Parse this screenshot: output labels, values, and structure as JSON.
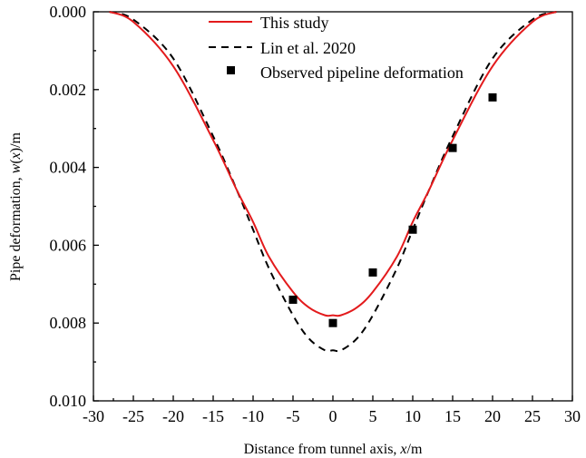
{
  "chart_data": {
    "type": "line",
    "title": "",
    "xlabel_parts": [
      "Distance from tunnel axis, ",
      "x",
      "/m"
    ],
    "ylabel_parts": [
      "Pipe deformation, ",
      "w",
      "(",
      "x",
      ")/m"
    ],
    "xlim": [
      -30,
      30
    ],
    "ylim": [
      0.0,
      0.01
    ],
    "y_inverted": true,
    "x_ticks": [
      -30,
      -25,
      -20,
      -15,
      -10,
      -5,
      0,
      5,
      10,
      15,
      20,
      25,
      30
    ],
    "x_tick_labels": [
      "-30",
      "-25",
      "-20",
      "-15",
      "-10",
      "-5",
      "0",
      "5",
      "10",
      "15",
      "20",
      "25",
      "30"
    ],
    "y_ticks": [
      0.0,
      0.002,
      0.004,
      0.006,
      0.008,
      0.01
    ],
    "y_tick_labels": [
      "0.000",
      "0.002",
      "0.004",
      "0.006",
      "0.008",
      "0.010"
    ],
    "legend_position": "top-right",
    "series": [
      {
        "name": "This study",
        "style": "solid-line",
        "color": "#e31a1c",
        "x": [
          -28,
          -25,
          -20,
          -15,
          -12,
          -10,
          -8,
          -5,
          -3,
          -1,
          0,
          1,
          3,
          5,
          8,
          10,
          12,
          15,
          20,
          25,
          28
        ],
        "y": [
          0.0,
          0.00026,
          0.0014,
          0.0033,
          0.0046,
          0.0054,
          0.0063,
          0.0072,
          0.0076,
          0.0078,
          0.0078,
          0.0078,
          0.0076,
          0.0072,
          0.0063,
          0.0054,
          0.0046,
          0.0033,
          0.0014,
          0.00026,
          0.0
        ]
      },
      {
        "name": "Lin et al. 2020",
        "style": "dashed-line",
        "color": "#000000",
        "x": [
          -28,
          -25,
          -20,
          -15,
          -12,
          -10,
          -8,
          -5,
          -3,
          -1,
          0,
          1,
          3,
          5,
          8,
          10,
          12,
          15,
          20,
          25,
          28
        ],
        "y": [
          0.0,
          0.0002,
          0.0012,
          0.0032,
          0.0046,
          0.0056,
          0.0066,
          0.0078,
          0.0084,
          0.0087,
          0.0087,
          0.0087,
          0.0084,
          0.0078,
          0.0066,
          0.0056,
          0.0046,
          0.0032,
          0.0012,
          0.0002,
          0.0
        ]
      },
      {
        "name": "Observed pipeline deformation",
        "style": "square-markers",
        "color": "#000000",
        "x": [
          -5,
          0,
          5,
          10,
          15,
          20
        ],
        "y": [
          0.0074,
          0.008,
          0.0067,
          0.0056,
          0.0035,
          0.0022
        ]
      }
    ]
  }
}
